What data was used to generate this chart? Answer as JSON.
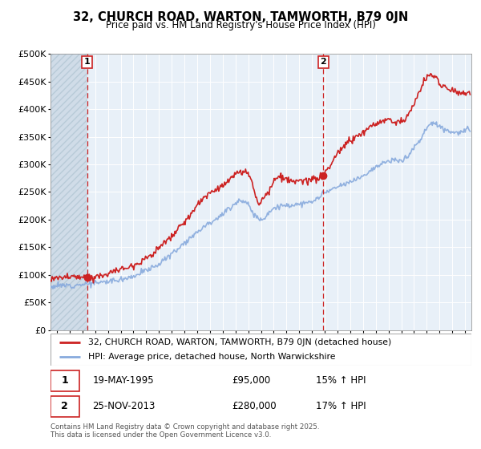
{
  "title": "32, CHURCH ROAD, WARTON, TAMWORTH, B79 0JN",
  "subtitle": "Price paid vs. HM Land Registry's House Price Index (HPI)",
  "ylabel_ticks": [
    "£0",
    "£50K",
    "£100K",
    "£150K",
    "£200K",
    "£250K",
    "£300K",
    "£350K",
    "£400K",
    "£450K",
    "£500K"
  ],
  "ylim": [
    0,
    500000
  ],
  "xlim_start": 1992.5,
  "xlim_end": 2025.5,
  "sale1_date": 1995.38,
  "sale1_price": 95000,
  "sale1_label": "1",
  "sale2_date": 2013.9,
  "sale2_price": 280000,
  "sale2_label": "2",
  "legend_line1": "32, CHURCH ROAD, WARTON, TAMWORTH, B79 0JN (detached house)",
  "legend_line2": "HPI: Average price, detached house, North Warwickshire",
  "footer": "Contains HM Land Registry data © Crown copyright and database right 2025.\nThis data is licensed under the Open Government Licence v3.0.",
  "line_color_red": "#cc2222",
  "line_color_blue": "#88aadd",
  "background_plot": "#e8f0f8",
  "grid_color": "#ffffff",
  "dashed_line_color": "#cc2222",
  "hpi_keypoints_x": [
    1992.5,
    1993.0,
    1994.0,
    1995.0,
    1996.0,
    1997.0,
    1998.0,
    1999.0,
    2000.0,
    2001.0,
    2002.0,
    2003.0,
    2004.0,
    2005.0,
    2006.0,
    2007.0,
    2007.5,
    2008.0,
    2008.5,
    2009.0,
    2009.5,
    2010.0,
    2011.0,
    2012.0,
    2013.0,
    2014.0,
    2015.0,
    2016.0,
    2017.0,
    2018.0,
    2019.0,
    2020.0,
    2020.5,
    2021.0,
    2021.5,
    2022.0,
    2022.5,
    2023.0,
    2023.5,
    2024.0,
    2024.5,
    2025.0,
    2025.4
  ],
  "hpi_keypoints_y": [
    78000,
    80000,
    81000,
    83000,
    85000,
    88000,
    92000,
    98000,
    108000,
    120000,
    138000,
    158000,
    178000,
    195000,
    210000,
    230000,
    235000,
    225000,
    210000,
    200000,
    210000,
    220000,
    225000,
    228000,
    232000,
    248000,
    258000,
    268000,
    280000,
    295000,
    305000,
    308000,
    315000,
    330000,
    345000,
    365000,
    375000,
    370000,
    362000,
    358000,
    358000,
    360000,
    362000
  ],
  "price_keypoints_x": [
    1992.5,
    1993.0,
    1994.0,
    1995.38,
    1996.0,
    1997.0,
    1998.0,
    1999.0,
    2000.0,
    2001.0,
    2002.0,
    2003.0,
    2004.0,
    2005.0,
    2006.0,
    2007.0,
    2007.8,
    2008.3,
    2008.8,
    2009.2,
    2009.8,
    2010.0,
    2011.0,
    2012.0,
    2013.0,
    2013.9,
    2014.5,
    2015.0,
    2016.0,
    2017.0,
    2018.0,
    2019.0,
    2020.0,
    2020.5,
    2021.0,
    2021.5,
    2022.0,
    2022.4,
    2022.8,
    2023.0,
    2023.5,
    2024.0,
    2024.5,
    2025.0,
    2025.4
  ],
  "price_keypoints_y": [
    92000,
    94000,
    96000,
    95000,
    97000,
    102000,
    110000,
    118000,
    130000,
    148000,
    170000,
    195000,
    225000,
    248000,
    262000,
    280000,
    285000,
    268000,
    232000,
    240000,
    258000,
    268000,
    272000,
    268000,
    272000,
    280000,
    300000,
    320000,
    342000,
    358000,
    372000,
    380000,
    378000,
    388000,
    410000,
    435000,
    458000,
    462000,
    455000,
    448000,
    438000,
    435000,
    432000,
    428000,
    430000
  ],
  "noise_seed": 12,
  "hpi_noise_std": 2500,
  "price_noise_std": 3000
}
